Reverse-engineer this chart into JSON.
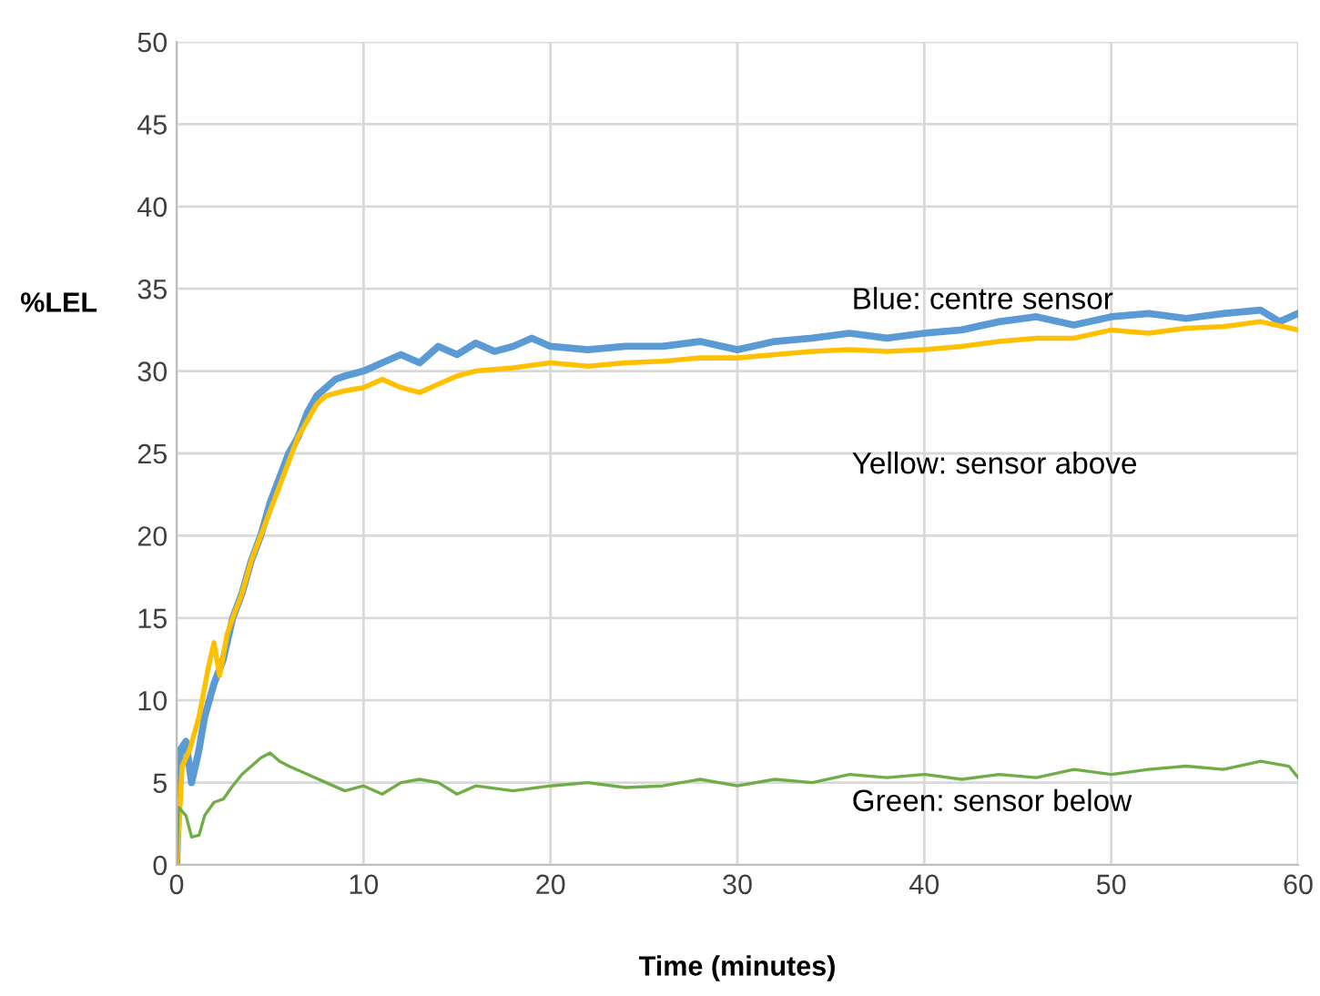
{
  "chart_data": {
    "type": "line",
    "xlabel": "Time (minutes)",
    "ylabel": "%LEL",
    "xlim": [
      0,
      60
    ],
    "xticks": [
      0,
      10,
      20,
      30,
      40,
      50,
      60
    ],
    "ylim": [
      0,
      50
    ],
    "yticks": [
      0,
      5,
      10,
      15,
      20,
      25,
      30,
      35,
      40,
      45,
      50
    ],
    "grid": true,
    "marker": "none",
    "line_style": "solid",
    "annotations": [
      "Blue: centre sensor",
      "Yellow: sensor above",
      "Green: sensor below"
    ],
    "series": [
      {
        "color": "#5b9bd5",
        "x": [
          0,
          0.2,
          0.5,
          0.8,
          1.2,
          1.5,
          2,
          2.5,
          3,
          3.5,
          4,
          4.5,
          5,
          5.5,
          6,
          6.5,
          7,
          7.5,
          8,
          8.5,
          9,
          10,
          11,
          12,
          13,
          14,
          15,
          16,
          17,
          18,
          19,
          20,
          22,
          24,
          26,
          28,
          30,
          32,
          34,
          36,
          38,
          40,
          42,
          44,
          46,
          48,
          50,
          52,
          54,
          56,
          58,
          59,
          60
        ],
        "values": [
          0,
          7,
          7.5,
          5,
          7,
          9,
          11,
          12.5,
          15,
          16.5,
          18.5,
          20,
          22,
          23.5,
          25,
          26,
          27.5,
          28.5,
          29,
          29.5,
          29.7,
          30,
          30.5,
          31,
          30.5,
          31.5,
          31,
          31.7,
          31.2,
          31.5,
          32,
          31.5,
          31.3,
          31.5,
          31.5,
          31.8,
          31.3,
          31.8,
          32,
          32.3,
          32,
          32.3,
          32.5,
          33,
          33.3,
          32.8,
          33.3,
          33.5,
          33.2,
          33.5,
          33.7,
          33,
          33.5
        ]
      },
      {
        "color": "#ffc000",
        "x": [
          0,
          0.3,
          0.7,
          1.2,
          1.7,
          2,
          2.3,
          2.7,
          3,
          3.5,
          4,
          4.5,
          5,
          5.5,
          6,
          6.5,
          7,
          7.5,
          8,
          9,
          10,
          11,
          12,
          13,
          14,
          15,
          16,
          18,
          20,
          22,
          24,
          26,
          28,
          30,
          32,
          34,
          36,
          38,
          40,
          42,
          44,
          46,
          48,
          50,
          52,
          54,
          56,
          58,
          60
        ],
        "values": [
          0,
          6,
          7,
          9,
          12,
          13.5,
          11.5,
          14,
          15,
          16.5,
          18.5,
          20,
          21.5,
          23,
          24.5,
          26,
          27,
          28,
          28.5,
          28.8,
          29,
          29.5,
          29,
          28.7,
          29.2,
          29.7,
          30,
          30.2,
          30.5,
          30.3,
          30.5,
          30.6,
          30.8,
          30.8,
          31,
          31.2,
          31.3,
          31.2,
          31.3,
          31.5,
          31.8,
          32,
          32,
          32.5,
          32.3,
          32.6,
          32.7,
          33,
          32.5
        ]
      },
      {
        "color": "#70ad47",
        "x": [
          0,
          0.1,
          0.5,
          0.8,
          1.2,
          1.5,
          2,
          2.5,
          3,
          3.5,
          4,
          4.5,
          5,
          5.5,
          6,
          7,
          8,
          9,
          10,
          11,
          12,
          13,
          14,
          15,
          16,
          18,
          20,
          22,
          24,
          26,
          28,
          30,
          32,
          34,
          36,
          38,
          40,
          42,
          44,
          46,
          48,
          50,
          52,
          54,
          56,
          58,
          59.5,
          60
        ],
        "values": [
          0,
          3.5,
          3,
          1.7,
          1.8,
          3,
          3.8,
          4,
          4.8,
          5.5,
          6,
          6.5,
          6.8,
          6.3,
          6,
          5.5,
          5,
          4.5,
          4.8,
          4.3,
          5,
          5.2,
          5,
          4.3,
          4.8,
          4.5,
          4.8,
          5,
          4.7,
          4.8,
          5.2,
          4.8,
          5.2,
          5,
          5.5,
          5.3,
          5.5,
          5.2,
          5.5,
          5.3,
          5.8,
          5.5,
          5.8,
          6,
          5.8,
          6.3,
          6,
          5.3
        ]
      }
    ]
  }
}
